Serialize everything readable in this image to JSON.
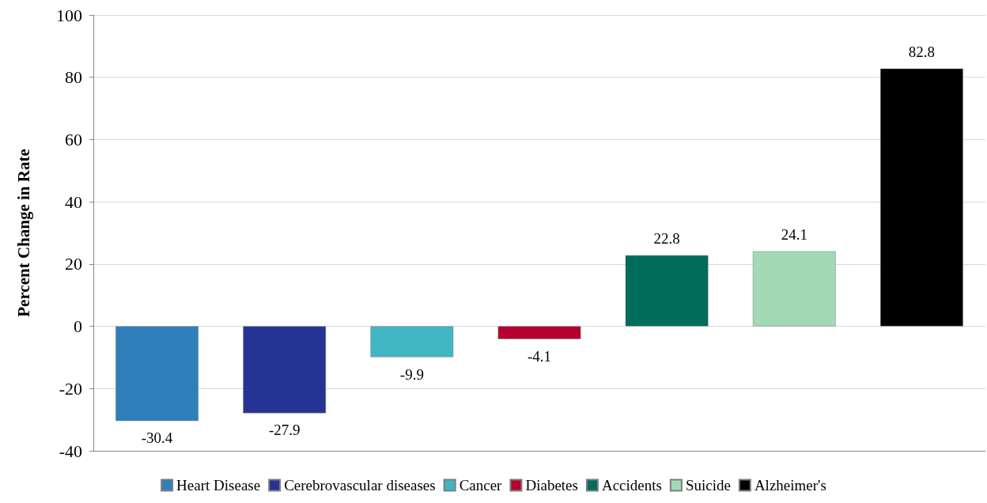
{
  "chart_data": {
    "type": "bar",
    "ylabel": "Percent Change in Rate",
    "categories": [
      null,
      null,
      null,
      null,
      null,
      null,
      null
    ],
    "series": [
      {
        "name": "Heart Disease",
        "color": "#2e7fba",
        "values": [
          -30.4,
          null,
          null,
          null,
          null,
          null,
          null
        ]
      },
      {
        "name": "Cerebrovascular diseases",
        "color": "#253494",
        "values": [
          null,
          -27.9,
          null,
          null,
          null,
          null,
          null
        ]
      },
      {
        "name": "Cancer",
        "color": "#41b6c4",
        "values": [
          null,
          null,
          -9.9,
          null,
          null,
          null,
          null
        ]
      },
      {
        "name": "Diabetes",
        "color": "#b5002e",
        "values": [
          null,
          null,
          null,
          -4.1,
          null,
          null,
          null
        ]
      },
      {
        "name": "Accidents",
        "color": "#006d5b",
        "values": [
          null,
          null,
          null,
          null,
          22.8,
          null,
          null
        ]
      },
      {
        "name": "Suicide",
        "color": "#a1dab4",
        "values": [
          null,
          null,
          null,
          null,
          null,
          24.1,
          null
        ]
      },
      {
        "name": "Alzheimer's",
        "color": "#000000",
        "values": [
          null,
          null,
          null,
          null,
          null,
          null,
          82.8
        ]
      }
    ],
    "ylim": [
      -40,
      100
    ],
    "yticks": [
      -40,
      -20,
      0,
      20,
      40,
      60,
      80,
      100
    ],
    "grid": "y",
    "legend": "bottom",
    "data_labels": true
  }
}
